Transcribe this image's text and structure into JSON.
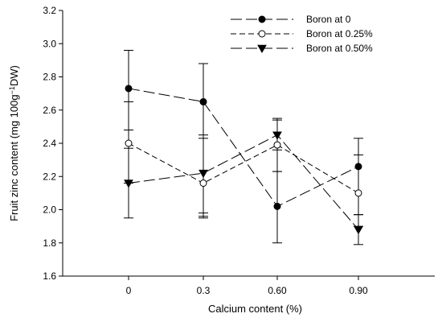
{
  "chart_data": {
    "type": "line",
    "title": "",
    "xlabel": "Calcium content (%)",
    "ylabel": "Fruit zinc content (mg 100g",
    "ylabel_sup": "−1",
    "ylabel_end": "DW)",
    "categories": [
      "0",
      "0.3",
      "0.60",
      "0.90"
    ],
    "ylim": [
      1.6,
      3.2
    ],
    "yticks": [
      "1.6",
      "1.8",
      "2.0",
      "2.2",
      "2.4",
      "2.6",
      "2.8",
      "3.0",
      "3.2"
    ],
    "grid": false,
    "legend_position": "top-right",
    "series": [
      {
        "name": "Boron at 0",
        "marker": "filled-circle",
        "dash": "long-dash",
        "values": [
          2.73,
          2.65,
          2.02,
          2.26
        ],
        "err_low": [
          2.37,
          1.96,
          1.8,
          1.97
        ],
        "err_high": [
          2.96,
          2.88,
          2.23,
          2.43
        ]
      },
      {
        "name": "Boron at 0.25%",
        "marker": "open-circle",
        "dash": "short-dash",
        "values": [
          2.4,
          2.16,
          2.39,
          2.1
        ],
        "err_low": [
          2.16,
          1.95,
          2.23,
          1.9
        ],
        "err_high": [
          2.48,
          2.43,
          2.55,
          2.33
        ]
      },
      {
        "name": "Boron at 0.50%",
        "marker": "filled-triangle",
        "dash": "long-dash",
        "values": [
          2.16,
          2.22,
          2.45,
          1.88
        ],
        "err_low": [
          1.95,
          1.98,
          2.36,
          1.79
        ],
        "err_high": [
          2.65,
          2.45,
          2.54,
          1.97
        ]
      }
    ]
  }
}
